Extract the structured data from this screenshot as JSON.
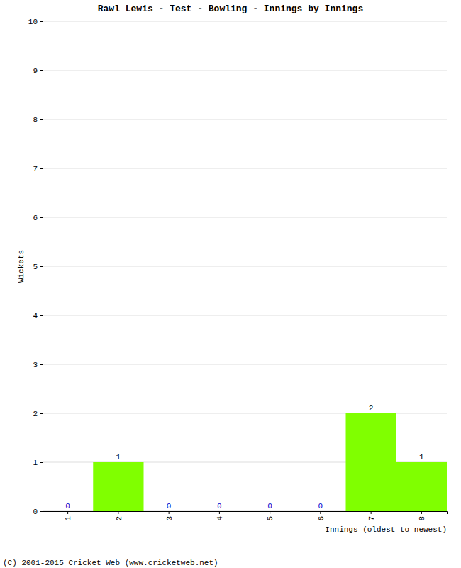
{
  "chart_data": {
    "type": "bar",
    "title": "Rawl Lewis - Test - Bowling - Innings by Innings",
    "x_label": "Innings (oldest to newest)",
    "y_label": "Wickets",
    "categories": [
      "1",
      "2",
      "3",
      "4",
      "5",
      "6",
      "7",
      "8"
    ],
    "values": [
      0,
      1,
      0,
      0,
      0,
      0,
      2,
      1
    ],
    "color": "#80ff00",
    "ylim": [
      0,
      10
    ],
    "yticks": [
      0,
      1,
      2,
      3,
      4,
      5,
      6,
      7,
      8,
      9,
      10
    ],
    "grid": true,
    "data_labels": true,
    "annotations": [
      "(C) 2001-2015 Cricket Web (www.cricketweb.net)"
    ]
  }
}
